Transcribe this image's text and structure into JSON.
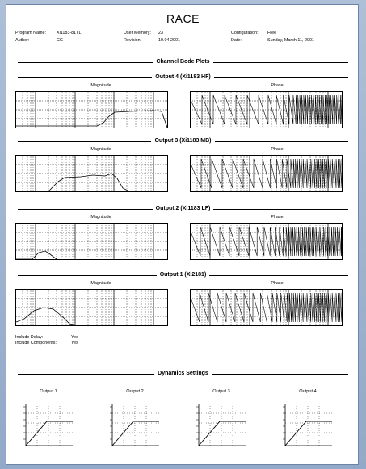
{
  "title": "RACE",
  "meta": {
    "program_label": "Program Name:",
    "program_value": "Xi1183-81TL",
    "author_label": "Author:",
    "author_value": "CG",
    "memory_label": "User Memory:",
    "memory_value": "23",
    "revision_label": "Revision:",
    "revision_value": "19.04.2001",
    "config_label": "Configuration:",
    "config_value": "Free",
    "date_label": "Date:",
    "date_value": "Sunday, March 11, 2001"
  },
  "channel_heading": "Channel Bode Plots",
  "outputs": [
    {
      "title": "Output 4 (Xi1183 HF)",
      "magnitude_label": "Magnitude",
      "phase_label": "Phase"
    },
    {
      "title": "Output 3 (Xi1183 MB)",
      "magnitude_label": "Magnitude",
      "phase_label": "Phase"
    },
    {
      "title": "Output 2 (Xi1183 LF)",
      "magnitude_label": "Magnitude",
      "phase_label": "Phase"
    },
    {
      "title": "Output 1 (Xi2181)",
      "magnitude_label": "Magnitude",
      "phase_label": "Phase"
    }
  ],
  "include": {
    "delay_label": "Include Delay:",
    "delay_value": "Yes",
    "components_label": "Include Components:",
    "components_value": "Yes"
  },
  "dynamics_heading": "Dynamics Settings",
  "dynamics": [
    {
      "title": "Output 1"
    },
    {
      "title": "Output 2"
    },
    {
      "title": "Output 3"
    },
    {
      "title": "Output 4"
    }
  ]
}
